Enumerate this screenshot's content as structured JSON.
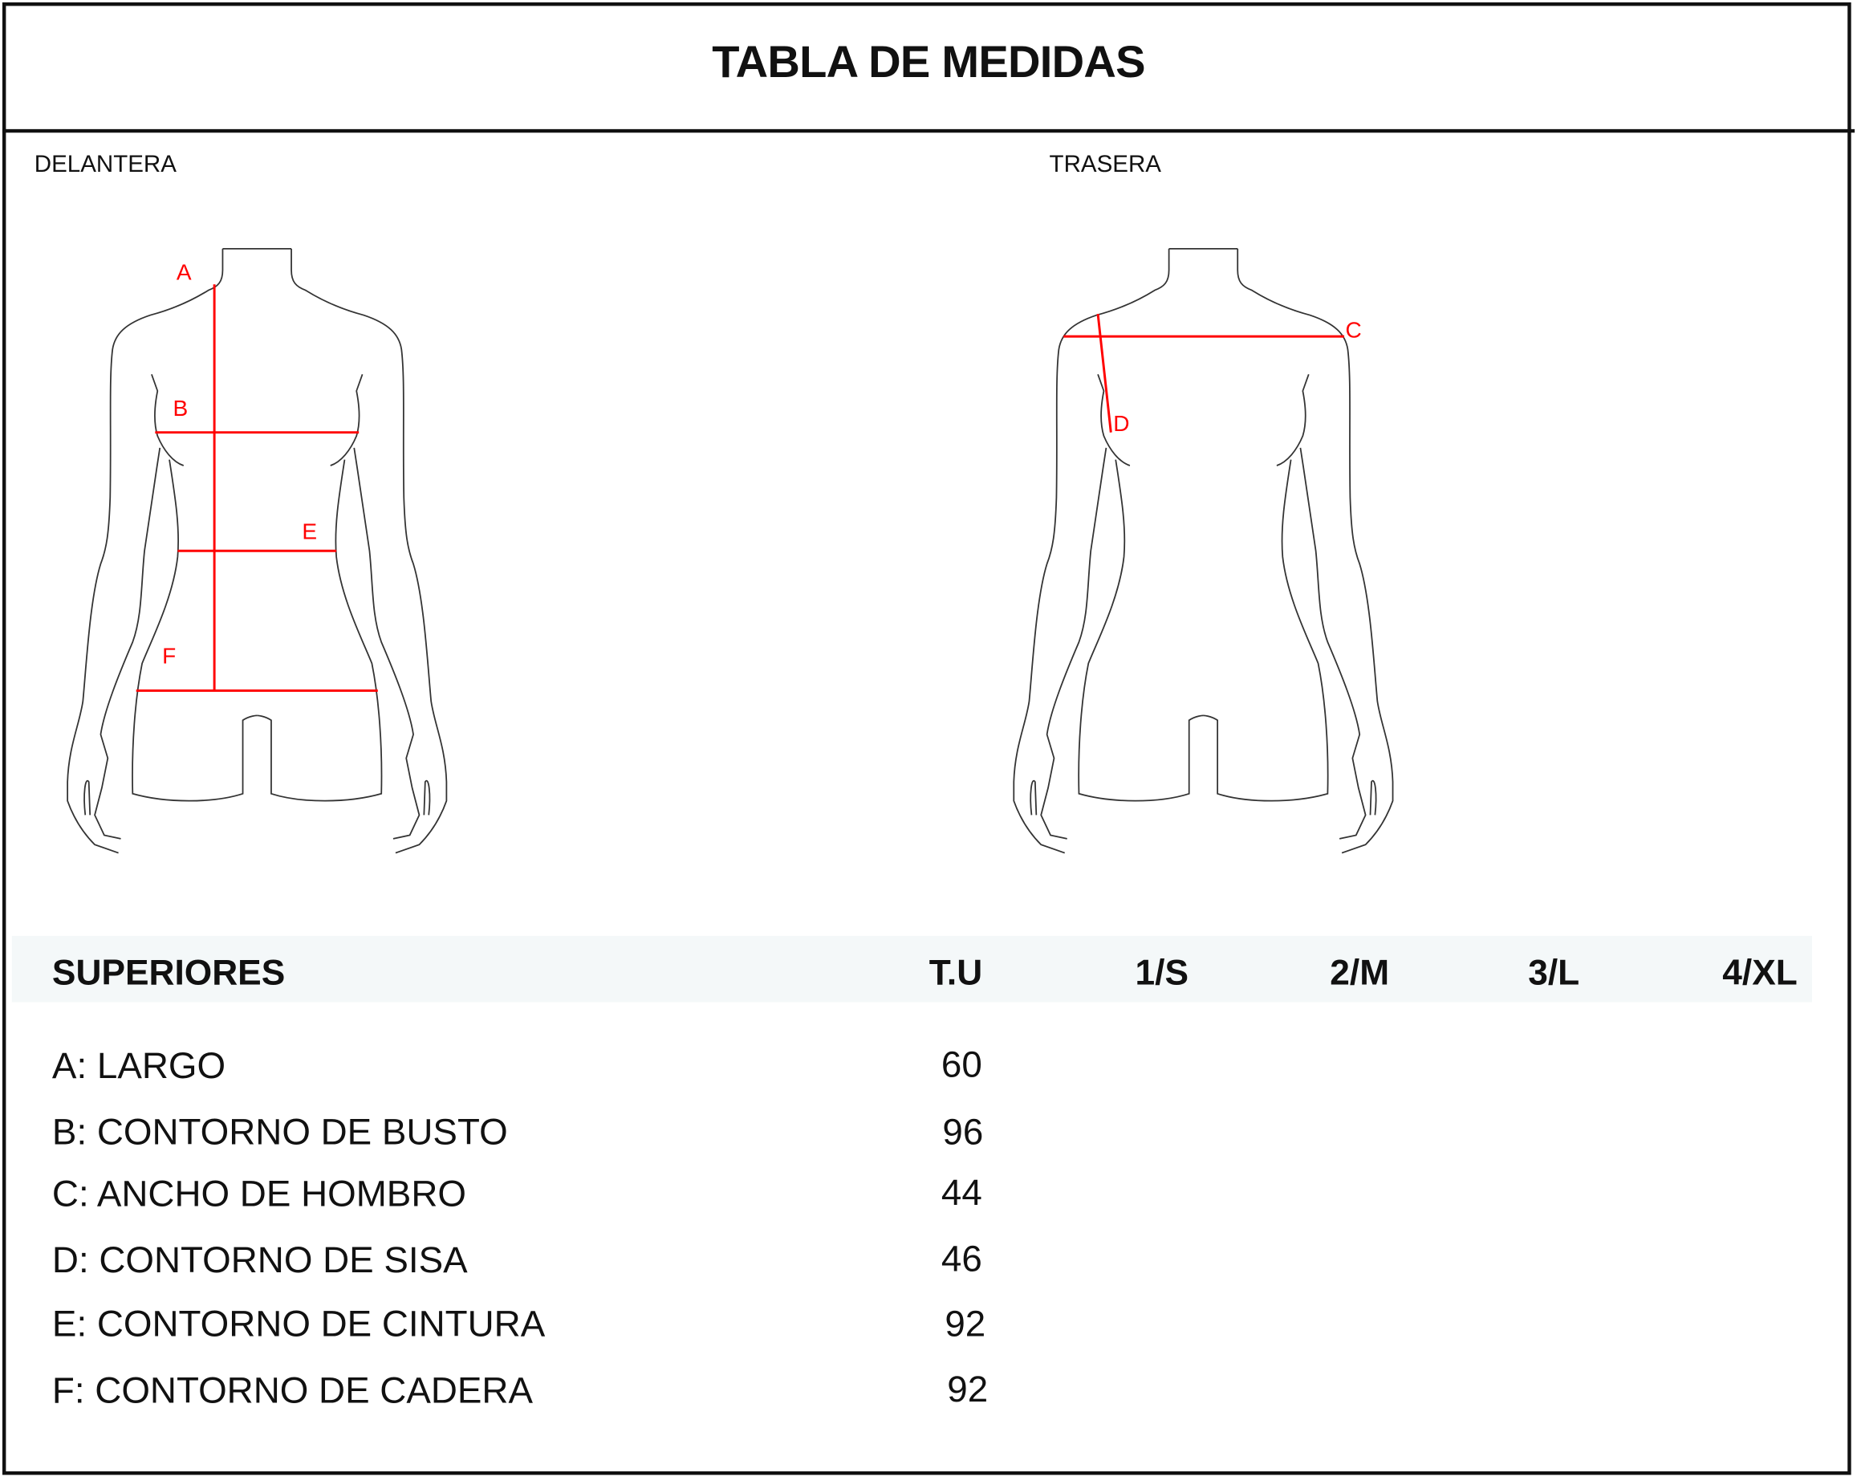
{
  "title": "TABLA DE MEDIDAS",
  "views": {
    "front": "DELANTERA",
    "back": "TRASERA"
  },
  "markers": {
    "a": "A",
    "b": "B",
    "c": "C",
    "d": "D",
    "e": "E",
    "f": "F"
  },
  "colors": {
    "measure_line": "#ff0000",
    "header_band": "#f4f8f9",
    "outline": "#333333"
  },
  "table": {
    "section": "SUPERIORES",
    "columns": [
      "T.U",
      "1/S",
      "2/M",
      "3/L",
      "4/XL"
    ],
    "rows": [
      {
        "label": "A: LARGO",
        "tu": "60"
      },
      {
        "label": "B: CONTORNO DE BUSTO",
        "tu": "96"
      },
      {
        "label": "C: ANCHO DE HOMBRO",
        "tu": "44"
      },
      {
        "label": "D: CONTORNO DE SISA",
        "tu": "46"
      },
      {
        "label": "E: CONTORNO DE CINTURA",
        "tu": "92"
      },
      {
        "label": "F: CONTORNO DE CADERA",
        "tu": "92"
      }
    ]
  }
}
